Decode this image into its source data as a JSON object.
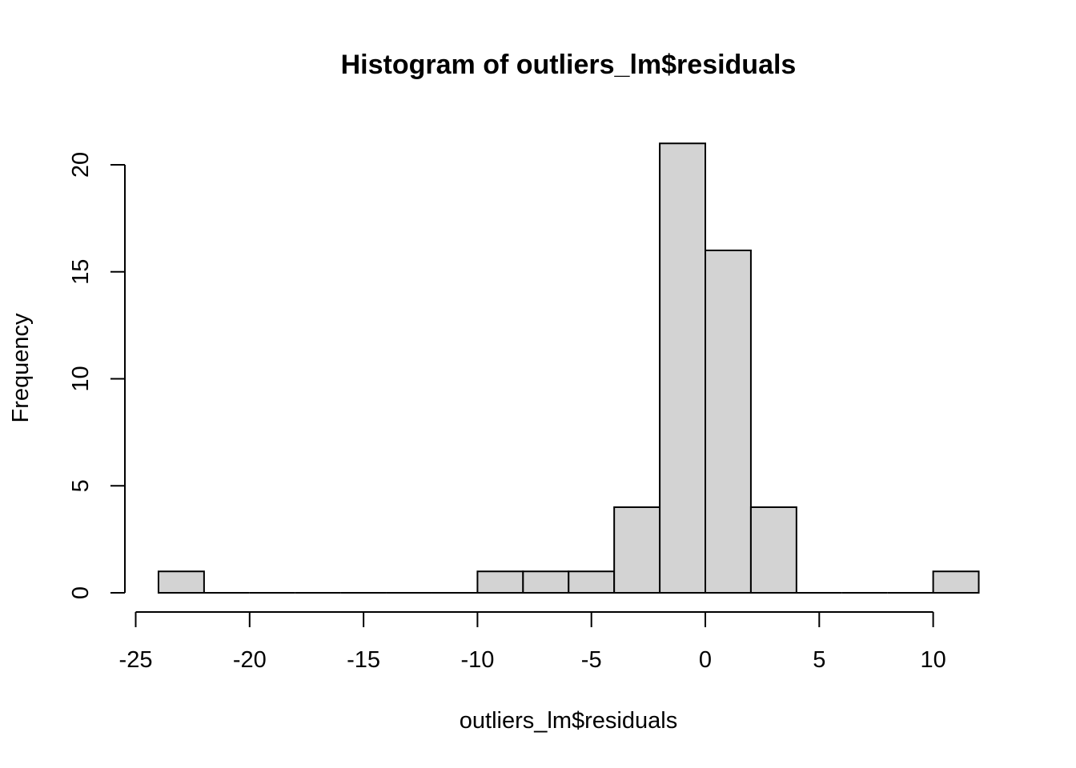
{
  "chart_data": {
    "type": "bar",
    "title": "Histogram of outliers_lm$residuals",
    "xlabel": "outliers_lm$residuals",
    "ylabel": "Frequency",
    "bins": [
      {
        "start": -24,
        "end": -22,
        "count": 1
      },
      {
        "start": -22,
        "end": -20,
        "count": 0
      },
      {
        "start": -20,
        "end": -18,
        "count": 0
      },
      {
        "start": -18,
        "end": -16,
        "count": 0
      },
      {
        "start": -16,
        "end": -14,
        "count": 0
      },
      {
        "start": -14,
        "end": -12,
        "count": 0
      },
      {
        "start": -12,
        "end": -10,
        "count": 0
      },
      {
        "start": -10,
        "end": -8,
        "count": 1
      },
      {
        "start": -8,
        "end": -6,
        "count": 1
      },
      {
        "start": -6,
        "end": -4,
        "count": 1
      },
      {
        "start": -4,
        "end": -2,
        "count": 4
      },
      {
        "start": -2,
        "end": 0,
        "count": 21
      },
      {
        "start": 0,
        "end": 2,
        "count": 16
      },
      {
        "start": 2,
        "end": 4,
        "count": 4
      },
      {
        "start": 4,
        "end": 6,
        "count": 0
      },
      {
        "start": 6,
        "end": 8,
        "count": 0
      },
      {
        "start": 8,
        "end": 10,
        "count": 0
      },
      {
        "start": 10,
        "end": 12,
        "count": 1
      }
    ],
    "xticks": [
      -25,
      -20,
      -15,
      -10,
      -5,
      0,
      5,
      10
    ],
    "xtick_labels": [
      "-25",
      "-20",
      "-15",
      "-10",
      "-5",
      "0",
      "5",
      "10"
    ],
    "yticks": [
      0,
      5,
      10,
      15,
      20
    ],
    "ytick_labels": [
      "0",
      "5",
      "10",
      "15",
      "20"
    ],
    "xlim": [
      -25,
      12
    ],
    "ylim": [
      0,
      20
    ],
    "bar_color": "#d3d3d3",
    "edge_color": "#000000",
    "grid": false,
    "legend": "none"
  }
}
